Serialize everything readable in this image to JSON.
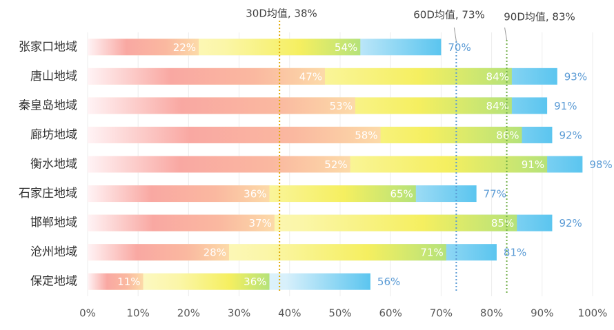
{
  "chart_data": {
    "type": "bar",
    "orientation": "horizontal",
    "categories": [
      "张家口地域",
      "唐山地域",
      "秦皇岛地域",
      "廊坊地域",
      "衡水地域",
      "石家庄地域",
      "邯郸地域",
      "沧州地域",
      "保定地域"
    ],
    "series": [
      {
        "color": "#f9a19a",
        "values": [
          22,
          47,
          53,
          58,
          52,
          36,
          37,
          28,
          11
        ],
        "value_labels": [
          "22%",
          "47%",
          "53%",
          "58%",
          "52%",
          "36%",
          "37%",
          "28%",
          "11%"
        ]
      },
      {
        "color": "#f5ee55",
        "values": [
          54,
          84,
          84,
          86,
          91,
          65,
          85,
          71,
          36
        ],
        "value_labels": [
          "54%",
          "84%",
          "84%",
          "86%",
          "91%",
          "65%",
          "85%",
          "71%",
          "36%"
        ]
      },
      {
        "color": "#5bc5ef",
        "values": [
          70,
          93,
          91,
          92,
          98,
          77,
          92,
          81,
          56
        ],
        "value_labels": [
          "70%",
          "93%",
          "91%",
          "92%",
          "98%",
          "77%",
          "92%",
          "81%",
          "56%"
        ]
      }
    ],
    "xlim": [
      0,
      100
    ],
    "xticks": [
      {
        "value": 0,
        "label": "0%"
      },
      {
        "value": 10,
        "label": "10%"
      },
      {
        "value": 20,
        "label": "20%"
      },
      {
        "value": 30,
        "label": "30%"
      },
      {
        "value": 40,
        "label": "40%"
      },
      {
        "value": 50,
        "label": "50%"
      },
      {
        "value": 60,
        "label": "60%"
      },
      {
        "value": 70,
        "label": "70%"
      },
      {
        "value": 80,
        "label": "80%"
      },
      {
        "value": 90,
        "label": "90%"
      },
      {
        "value": 100,
        "label": "100%"
      }
    ],
    "grid": true,
    "reference_lines": [
      {
        "label": "30D均值, 38%",
        "value": 38,
        "color": "#e0a800"
      },
      {
        "label": "60D均值, 73%",
        "value": 73,
        "color": "#5b9bd5"
      },
      {
        "label": "90D均值, 83%",
        "value": 83,
        "color": "#70ad47"
      }
    ]
  }
}
